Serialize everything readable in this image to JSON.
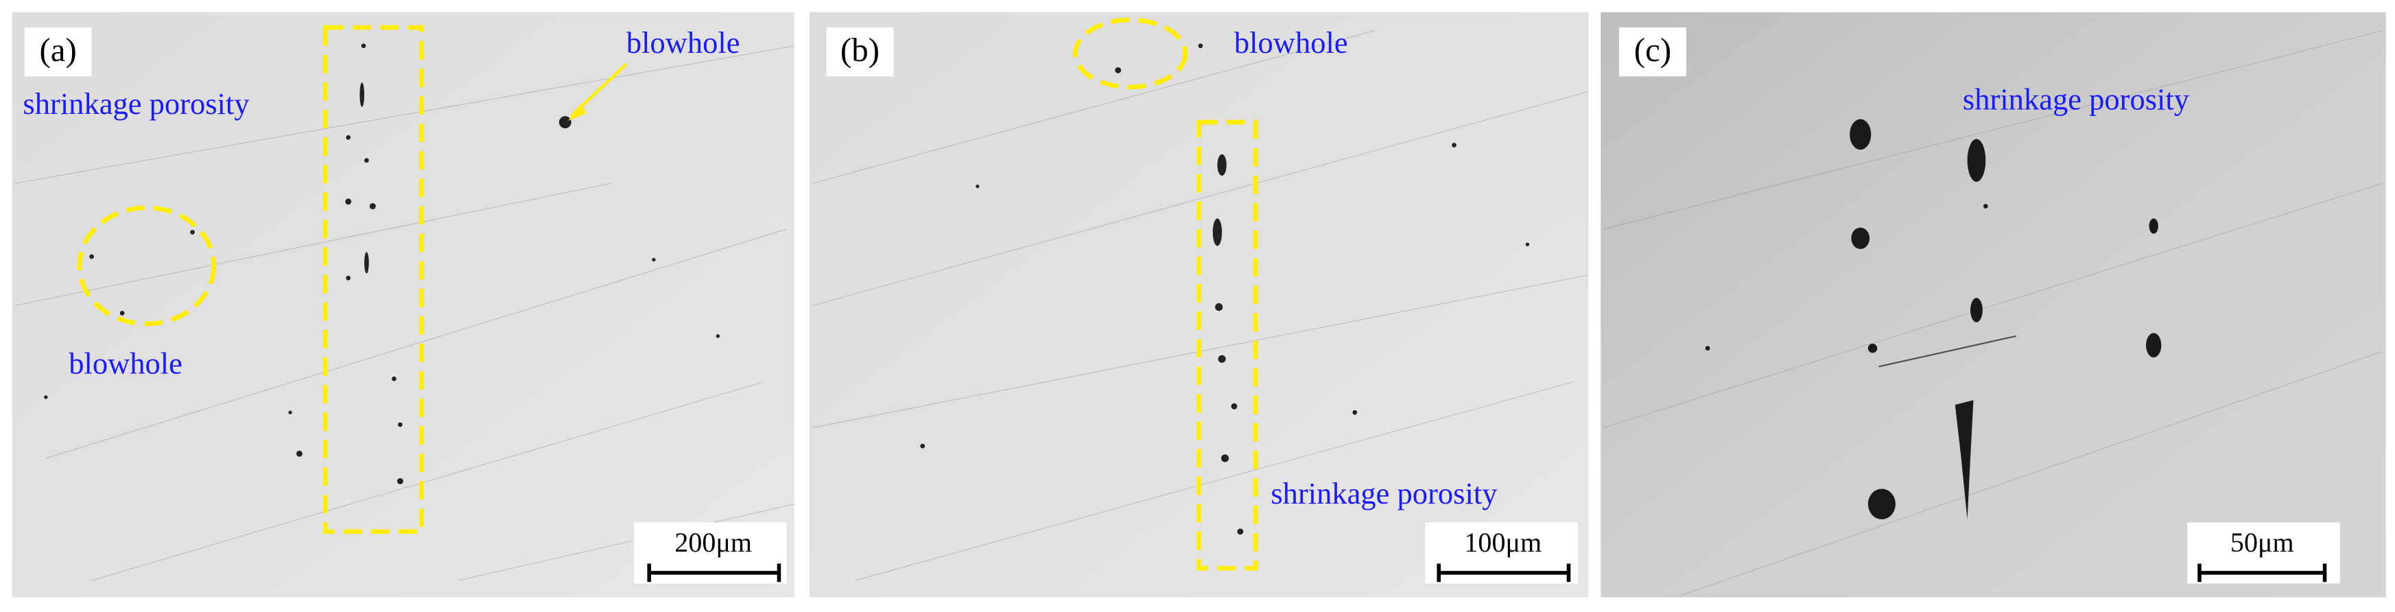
{
  "panels": [
    {
      "label": "(a)",
      "annotations": [
        "shrinkage porosity",
        "blowhole",
        "blowhole"
      ],
      "scale_bar": "200μm"
    },
    {
      "label": "(b)",
      "annotations": [
        "blowhole",
        "shrinkage porosity"
      ],
      "scale_bar": "100μm"
    },
    {
      "label": "(c)",
      "annotations": [
        "shrinkage porosity"
      ],
      "scale_bar": "50μm"
    }
  ]
}
